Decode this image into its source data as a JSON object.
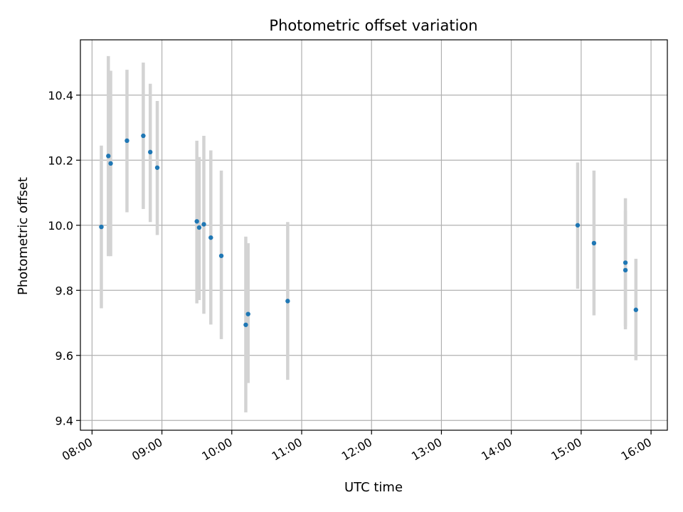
{
  "chart_data": {
    "type": "scatter",
    "title": "Photometric offset variation",
    "xlabel": "UTC time",
    "ylabel": "Photometric offset",
    "x_tick_labels": [
      "08:00",
      "09:00",
      "10:00",
      "11:00",
      "12:00",
      "13:00",
      "14:00",
      "15:00",
      "16:00"
    ],
    "y_tick_labels": [
      "9.4",
      "9.6",
      "9.8",
      "10.0",
      "10.2",
      "10.4"
    ],
    "x_ticks": [
      "08:00",
      "09:00",
      "10:00",
      "11:00",
      "12:00",
      "13:00",
      "14:00",
      "15:00",
      "16:00"
    ],
    "y_ticks": [
      9.4,
      9.6,
      9.8,
      10.0,
      10.2,
      10.4
    ],
    "xlim": [
      "07:50",
      "16:14"
    ],
    "ylim": [
      9.37,
      10.57
    ],
    "grid": true,
    "colors": {
      "point": "#1f77b4",
      "errorbar": "#d3d3d3",
      "grid": "#b0b0b0",
      "axes": "#000000"
    },
    "series": [
      {
        "x": [
          "08:08",
          "08:14",
          "08:16",
          "08:30",
          "08:44",
          "08:50",
          "08:56",
          "09:30",
          "09:32",
          "09:36",
          "09:42",
          "09:51",
          "10:12",
          "10:14",
          "10:48",
          "14:57",
          "15:11",
          "15:38",
          "15:38",
          "15:47"
        ],
        "y": [
          9.995,
          10.213,
          10.19,
          10.26,
          10.275,
          10.225,
          10.177,
          10.012,
          9.993,
          10.003,
          9.962,
          9.906,
          9.694,
          9.727,
          9.767,
          10.0,
          9.945,
          9.885,
          9.862,
          9.74
        ],
        "yerr_low": [
          9.745,
          9.905,
          9.905,
          10.04,
          10.05,
          10.01,
          9.97,
          9.76,
          9.77,
          9.728,
          9.695,
          9.65,
          9.425,
          9.515,
          9.525,
          9.805,
          9.723,
          9.69,
          9.68,
          9.585
        ],
        "yerr_high": [
          10.245,
          10.52,
          10.475,
          10.478,
          10.5,
          10.435,
          10.382,
          10.26,
          10.21,
          10.275,
          10.23,
          10.168,
          9.965,
          9.945,
          10.01,
          10.193,
          10.168,
          10.083,
          10.045,
          9.897
        ]
      }
    ]
  }
}
